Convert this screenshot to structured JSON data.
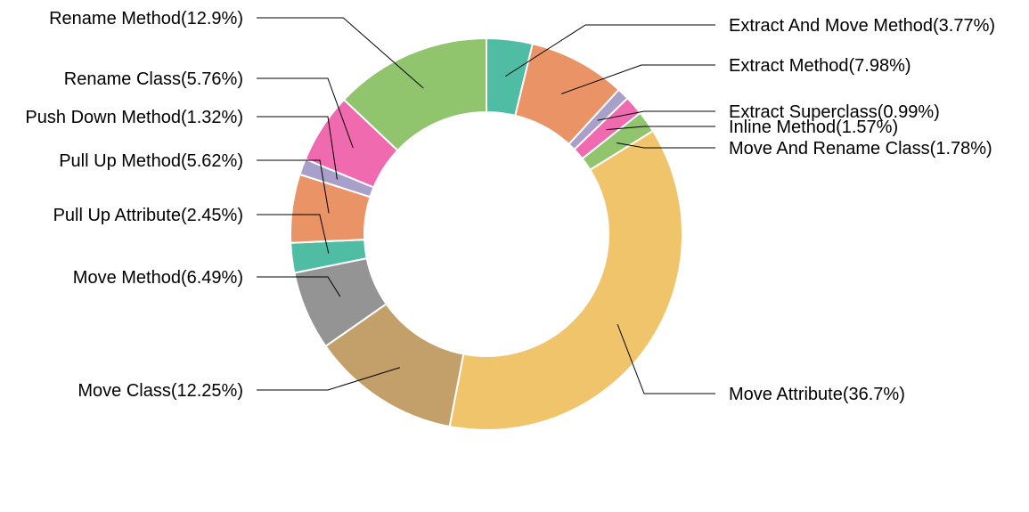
{
  "chart_data": {
    "type": "pie",
    "donut": true,
    "start_angle_deg": 0,
    "direction": "clockwise",
    "slices": [
      {
        "label": "Extract And Move Method(3.77%)",
        "value": 3.77,
        "color": "#4ebda4",
        "side": "right"
      },
      {
        "label": "Extract Method(7.98%)",
        "value": 7.98,
        "color": "#e99366",
        "side": "right"
      },
      {
        "label": "Extract Superclass(0.99%)",
        "value": 0.99,
        "color": "#a8a0cb",
        "side": "right"
      },
      {
        "label": "Inline Method(1.57%)",
        "value": 1.57,
        "color": "#f06aaf",
        "side": "right"
      },
      {
        "label": "Move And Rename Class(1.78%)",
        "value": 1.78,
        "color": "#90c46d",
        "side": "right"
      },
      {
        "label": "Move Attribute(36.7%)",
        "value": 36.7,
        "color": "#efc46b",
        "side": "right"
      },
      {
        "label": "Move Class(12.25%)",
        "value": 12.25,
        "color": "#c39f6a",
        "side": "left"
      },
      {
        "label": "Move Method(6.49%)",
        "value": 6.49,
        "color": "#949494",
        "side": "left"
      },
      {
        "label": "Pull Up Attribute(2.45%)",
        "value": 2.45,
        "color": "#4ebda4",
        "side": "left"
      },
      {
        "label": "Pull Up Method(5.62%)",
        "value": 5.62,
        "color": "#e99366",
        "side": "left"
      },
      {
        "label": "Push Down Method(1.32%)",
        "value": 1.32,
        "color": "#a8a0cb",
        "side": "left"
      },
      {
        "label": "Rename Class(5.76%)",
        "value": 5.76,
        "color": "#f06aaf",
        "side": "left"
      },
      {
        "label": "Rename Method(12.9%)",
        "value": 12.9,
        "color": "#90c46d",
        "side": "left"
      }
    ]
  }
}
